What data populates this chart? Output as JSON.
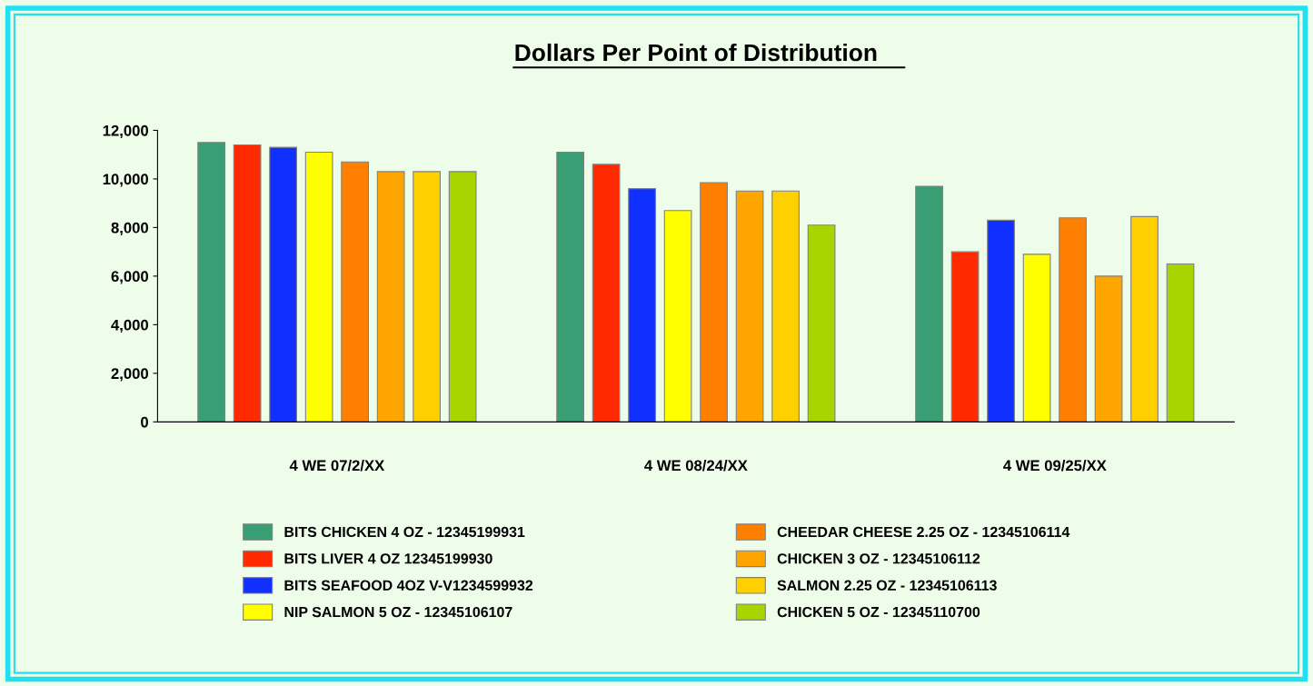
{
  "chart_data": {
    "type": "bar",
    "title": "Dollars Per Point of Distribution",
    "categories": [
      "4 WE 07/2/XX",
      "4 WE 08/24/XX",
      "4 WE 09/25/XX"
    ],
    "series": [
      {
        "name": "BITS CHICKEN 4 OZ - 12345199931",
        "color": "#3a9e74",
        "values": [
          11500,
          11100,
          9700
        ]
      },
      {
        "name": "BITS LIVER 4 OZ 12345199930",
        "color": "#ff2a00",
        "values": [
          11400,
          10600,
          7000
        ]
      },
      {
        "name": "BITS SEAFOOD 4OZ V-V1234599932",
        "color": "#1030ff",
        "values": [
          11300,
          9600,
          8300
        ]
      },
      {
        "name": "NIP SALMON 5 OZ - 12345106107",
        "color": "#ffff00",
        "values": [
          11100,
          8700,
          6900
        ]
      },
      {
        "name": "CHEEDAR CHEESE 2.25 OZ - 12345106114",
        "color": "#ff8000",
        "values": [
          10700,
          9850,
          8400
        ]
      },
      {
        "name": "CHICKEN 3 OZ - 12345106112",
        "color": "#ffa500",
        "values": [
          10300,
          9500,
          6000
        ]
      },
      {
        "name": "SALMON 2.25 OZ - 12345106113",
        "color": "#ffd000",
        "values": [
          10300,
          9500,
          8450
        ]
      },
      {
        "name": "CHICKEN 5 OZ - 12345110700",
        "color": "#a8d400",
        "values": [
          10300,
          8100,
          6500
        ]
      }
    ],
    "ylim": [
      0,
      12000
    ],
    "yticks": [
      {
        "value": 0,
        "label": "0"
      },
      {
        "value": 2000,
        "label": "2,000"
      },
      {
        "value": 4000,
        "label": "4,000"
      },
      {
        "value": 6000,
        "label": "6,000"
      },
      {
        "value": 8000,
        "label": "8,000"
      },
      {
        "value": 10000,
        "label": "10,000"
      },
      {
        "value": 12000,
        "label": "12,000"
      }
    ],
    "grid": false,
    "legend": "bottom"
  }
}
